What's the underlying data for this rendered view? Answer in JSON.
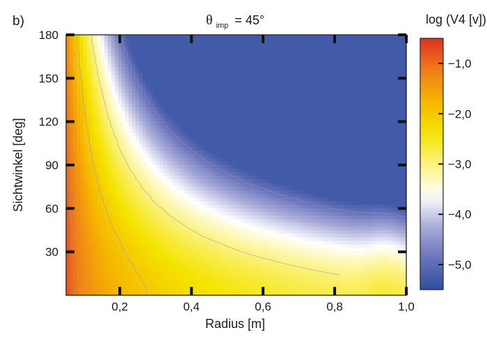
{
  "panel_label": "b)",
  "chart_data": {
    "type": "heatmap",
    "title_symbol": "θ",
    "title_subscript": "imp",
    "title_value": "= 45°",
    "xlabel": "Radius [m]",
    "ylabel": "Sichtwinkel [deg]",
    "xlim": [
      0.05,
      1.0
    ],
    "ylim": [
      0,
      180
    ],
    "x_ticks": [
      0.2,
      0.4,
      0.6,
      0.8,
      1.0
    ],
    "x_tick_labels": [
      "0,2",
      "0,4",
      "0,6",
      "0,8",
      "1,0"
    ],
    "y_ticks": [
      30,
      60,
      90,
      120,
      150,
      180
    ],
    "y_tick_labels": [
      "30",
      "60",
      "90",
      "120",
      "150",
      "180"
    ],
    "colorbar": {
      "label": "log (V4 [v])",
      "range": [
        -5.5,
        -0.5
      ],
      "ticks": [
        -1.0,
        -2.0,
        -3.0,
        -4.0,
        -5.0
      ],
      "tick_labels": [
        "−1,0",
        "−2,0",
        "−3,0",
        "−4,0",
        "−5,0"
      ],
      "colors": [
        "#2f4f9f",
        "#6a73bb",
        "#a8acd8",
        "#ffffff",
        "#fbf27e",
        "#f4e400",
        "#f6b600",
        "#ef7c1b",
        "#e0301f"
      ]
    },
    "contour_levels": [
      -4.9,
      -3.0,
      -2.0,
      -1.0
    ],
    "grid": false,
    "description_values": {
      "max_region": "small radius, low angle (~ -0.7)",
      "min_region": "large radius, high angle (~ -5.1)"
    }
  }
}
